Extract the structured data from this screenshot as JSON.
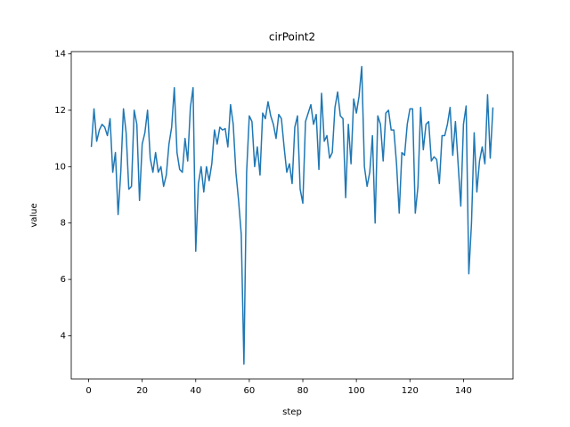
{
  "chart_data": {
    "type": "line",
    "title": "cirPoint2",
    "x_label": "step",
    "y_label": "value",
    "x": [
      1,
      2,
      3,
      4,
      5,
      6,
      7,
      8,
      9,
      10,
      11,
      12,
      13,
      14,
      15,
      16,
      17,
      18,
      19,
      20,
      21,
      22,
      23,
      24,
      25,
      26,
      27,
      28,
      29,
      30,
      31,
      32,
      33,
      34,
      35,
      36,
      37,
      38,
      39,
      40,
      41,
      42,
      43,
      44,
      45,
      46,
      47,
      48,
      49,
      50,
      51,
      52,
      53,
      54,
      55,
      56,
      57,
      58,
      59,
      60,
      61,
      62,
      63,
      64,
      65,
      66,
      67,
      68,
      69,
      70,
      71,
      72,
      73,
      74,
      75,
      76,
      77,
      78,
      79,
      80,
      81,
      82,
      83,
      84,
      85,
      86,
      87,
      88,
      89,
      90,
      91,
      92,
      93,
      94,
      95,
      96,
      97,
      98,
      99,
      100,
      101,
      102,
      103,
      104,
      105,
      106,
      107,
      108,
      109,
      110,
      111,
      112,
      113,
      114,
      115,
      116,
      117,
      118,
      119,
      120,
      121,
      122,
      123,
      124,
      125,
      126,
      127,
      128,
      129,
      130,
      131,
      132,
      133,
      134,
      135,
      136,
      137,
      138,
      139,
      140,
      141,
      142,
      143,
      144,
      145,
      146,
      147,
      148,
      149,
      150,
      151
    ],
    "series": [
      {
        "name": "cirPoint2",
        "color": "#1f77b4",
        "values": [
          10.7,
          12.05,
          10.9,
          11.3,
          11.5,
          11.4,
          11.1,
          11.7,
          9.8,
          10.5,
          8.3,
          9.8,
          12.05,
          11.2,
          9.2,
          9.3,
          12.0,
          11.5,
          8.8,
          10.8,
          11.2,
          12.0,
          10.3,
          9.8,
          10.5,
          9.8,
          10.0,
          9.3,
          9.7,
          10.8,
          11.4,
          12.8,
          10.5,
          9.9,
          9.8,
          11.0,
          10.2,
          12.1,
          12.8,
          7.0,
          9.4,
          10.0,
          9.1,
          10.0,
          9.5,
          10.1,
          11.3,
          10.8,
          11.4,
          11.3,
          11.35,
          10.7,
          12.2,
          11.5,
          9.8,
          8.8,
          7.6,
          3.0,
          9.8,
          11.8,
          11.6,
          10.0,
          10.7,
          9.7,
          11.9,
          11.7,
          12.3,
          11.8,
          11.5,
          11.0,
          11.85,
          11.7,
          10.7,
          9.8,
          10.1,
          9.4,
          11.4,
          11.8,
          9.2,
          8.7,
          11.6,
          11.9,
          12.2,
          11.5,
          11.85,
          9.9,
          12.6,
          10.9,
          11.1,
          10.3,
          10.5,
          12.1,
          12.65,
          11.8,
          11.7,
          8.9,
          11.5,
          10.1,
          12.4,
          11.9,
          12.5,
          13.55,
          10.0,
          9.3,
          9.8,
          11.1,
          8.0,
          11.8,
          11.5,
          10.2,
          11.9,
          12.0,
          11.3,
          11.3,
          10.1,
          8.35,
          10.5,
          10.4,
          11.5,
          12.05,
          12.05,
          8.35,
          9.3,
          12.1,
          10.6,
          11.5,
          11.6,
          10.2,
          10.35,
          10.25,
          9.4,
          11.1,
          11.1,
          11.5,
          12.1,
          10.4,
          11.6,
          10.1,
          8.6,
          11.5,
          12.15,
          6.2,
          8.0,
          11.2,
          9.1,
          10.2,
          10.7,
          10.1,
          12.55,
          10.3,
          12.1
        ]
      }
    ],
    "xlim": [
      -6.5,
      158.5
    ],
    "ylim": [
      2.47,
      14.08
    ],
    "xticks": [
      0,
      20,
      40,
      60,
      80,
      100,
      120,
      140
    ],
    "yticks": [
      4,
      6,
      8,
      10,
      12,
      14
    ]
  }
}
